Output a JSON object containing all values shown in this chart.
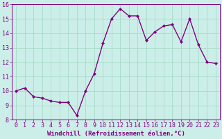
{
  "x": [
    0,
    1,
    2,
    3,
    4,
    5,
    6,
    7,
    8,
    9,
    10,
    11,
    12,
    13,
    14,
    15,
    16,
    17,
    18,
    19,
    20,
    21,
    22,
    23
  ],
  "y": [
    10.0,
    10.2,
    9.6,
    9.5,
    9.3,
    9.2,
    9.2,
    8.3,
    10.0,
    11.2,
    13.3,
    15.0,
    15.7,
    15.2,
    15.2,
    13.5,
    14.1,
    14.5,
    14.6,
    13.4,
    15.0,
    13.2,
    12.0,
    11.9
  ],
  "line_color": "#800080",
  "marker": "D",
  "marker_size": 2,
  "bg_color": "#cceee8",
  "grid_color": "#aaddcc",
  "xlabel": "Windchill (Refroidissement éolien,°C)",
  "ylim": [
    8,
    16
  ],
  "xlim": [
    -0.5,
    23.5
  ],
  "yticks": [
    8,
    9,
    10,
    11,
    12,
    13,
    14,
    15,
    16
  ],
  "xticks": [
    0,
    1,
    2,
    3,
    4,
    5,
    6,
    7,
    8,
    9,
    10,
    11,
    12,
    13,
    14,
    15,
    16,
    17,
    18,
    19,
    20,
    21,
    22,
    23
  ],
  "xlabel_fontsize": 6.5,
  "tick_fontsize": 6,
  "line_width": 1.0
}
